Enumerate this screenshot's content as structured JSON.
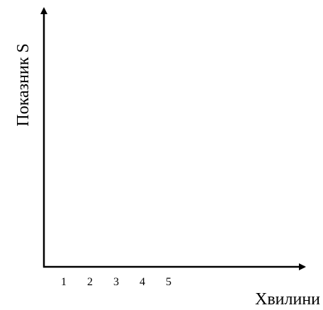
{
  "chart_data": {
    "type": "line",
    "title": "",
    "xlabel": "Хвилини",
    "ylabel": "Показник S",
    "x_ticks": [
      "1",
      "2",
      "3",
      "4",
      "5"
    ],
    "series": [],
    "grid": false,
    "legend": "none",
    "colors": {
      "axis": "#000000",
      "text": "#000000",
      "background": "#ffffff"
    }
  }
}
